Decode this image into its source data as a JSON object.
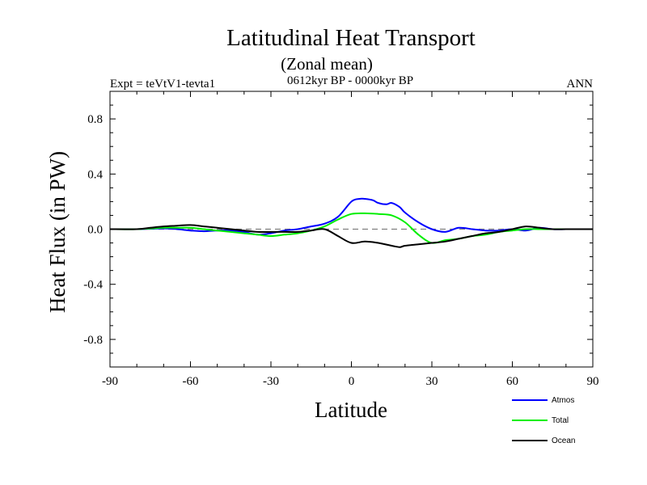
{
  "chart_data": {
    "type": "line",
    "title": "Latitudinal Heat Transport",
    "subtitle": "(Zonal mean)",
    "experiment_label": "Expt = teVtV1-tevta1",
    "period_label": "0612kyr BP - 0000kyr BP",
    "season_label": "ANN",
    "xlabel": "Latitude",
    "ylabel": "Heat Flux (in PW)",
    "xlim": [
      -90,
      90
    ],
    "ylim": [
      -1.0,
      1.0
    ],
    "x_ticks": [
      -90,
      -60,
      -30,
      0,
      30,
      60,
      90
    ],
    "x_tick_labels": [
      "-90",
      "-60",
      "-30",
      "0",
      "30",
      "60",
      "90"
    ],
    "y_ticks": [
      0.8,
      0.4,
      0.0,
      -0.4,
      -0.8
    ],
    "y_tick_labels": [
      "0.8",
      "0.4",
      "0.0",
      "-0.4",
      "-0.8"
    ],
    "zero_line": {
      "y": 0.0,
      "style": "dashed",
      "color": "#808080"
    },
    "legend": {
      "position": "bottom-right-outside"
    },
    "series": [
      {
        "name": "Atmos",
        "color": "#0000ff",
        "x": [
          -90,
          -80,
          -70,
          -65,
          -60,
          -55,
          -50,
          -45,
          -40,
          -35,
          -30,
          -25,
          -20,
          -15,
          -10,
          -5,
          0,
          3,
          5,
          8,
          10,
          13,
          15,
          18,
          20,
          25,
          30,
          35,
          40,
          45,
          50,
          55,
          60,
          65,
          70,
          75,
          80,
          85,
          90
        ],
        "values": [
          0.0,
          0.0,
          0.005,
          0.0,
          -0.01,
          -0.015,
          -0.01,
          -0.01,
          -0.02,
          -0.04,
          -0.03,
          -0.01,
          0.0,
          0.02,
          0.04,
          0.09,
          0.2,
          0.22,
          0.22,
          0.21,
          0.19,
          0.18,
          0.19,
          0.16,
          0.12,
          0.05,
          0.0,
          -0.02,
          0.01,
          0.0,
          -0.01,
          -0.01,
          0.0,
          -0.01,
          0.01,
          0.0,
          0.0,
          0.0,
          0.0
        ]
      },
      {
        "name": "Total",
        "color": "#00ee00",
        "x": [
          -90,
          -80,
          -70,
          -65,
          -60,
          -55,
          -50,
          -45,
          -40,
          -35,
          -30,
          -25,
          -20,
          -15,
          -10,
          -5,
          0,
          5,
          10,
          15,
          20,
          25,
          30,
          35,
          40,
          45,
          50,
          55,
          60,
          65,
          70,
          75,
          80,
          85,
          90
        ],
        "values": [
          0.0,
          0.0,
          0.01,
          0.01,
          0.01,
          0.0,
          -0.01,
          -0.02,
          -0.03,
          -0.04,
          -0.05,
          -0.04,
          -0.03,
          -0.01,
          0.02,
          0.07,
          0.11,
          0.115,
          0.11,
          0.1,
          0.05,
          -0.04,
          -0.1,
          -0.08,
          -0.07,
          -0.05,
          -0.04,
          -0.02,
          -0.01,
          0.0,
          0.0,
          0.0,
          0.0,
          0.0,
          0.0
        ]
      },
      {
        "name": "Ocean",
        "color": "#000000",
        "x": [
          -90,
          -80,
          -75,
          -70,
          -65,
          -60,
          -55,
          -50,
          -45,
          -40,
          -35,
          -30,
          -25,
          -20,
          -15,
          -10,
          -5,
          0,
          5,
          10,
          15,
          18,
          20,
          25,
          30,
          35,
          40,
          45,
          50,
          55,
          60,
          65,
          70,
          75,
          80,
          85,
          90
        ],
        "values": [
          0.0,
          0.0,
          0.01,
          0.02,
          0.025,
          0.03,
          0.02,
          0.01,
          0.0,
          -0.01,
          -0.02,
          -0.02,
          -0.02,
          -0.02,
          -0.01,
          0.0,
          -0.05,
          -0.1,
          -0.09,
          -0.1,
          -0.12,
          -0.13,
          -0.12,
          -0.11,
          -0.1,
          -0.09,
          -0.07,
          -0.05,
          -0.03,
          -0.02,
          0.0,
          0.02,
          0.01,
          0.0,
          0.0,
          0.0,
          0.0
        ]
      }
    ]
  }
}
